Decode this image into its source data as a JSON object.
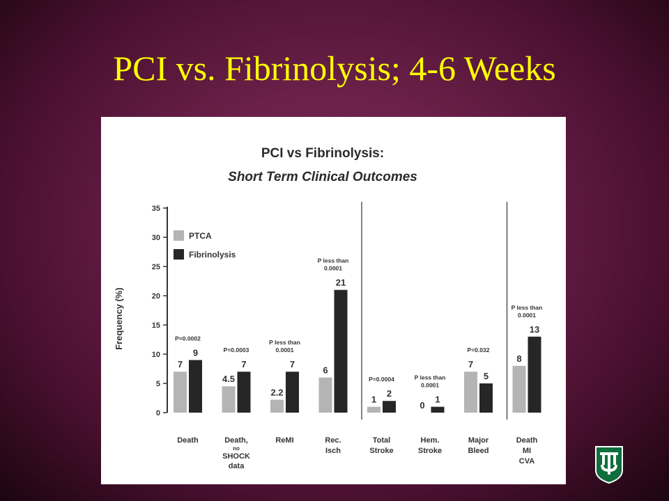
{
  "slide": {
    "title": "PCI vs. Fibrinolysis; 4-6 Weeks"
  },
  "colors": {
    "background": "#6a2048",
    "title": "#ffff00",
    "ptca": "#b4b4b4",
    "fibrinolysis": "#262626",
    "logo": "#0f6e3c"
  },
  "logo_icon": "tulane-shield-logo",
  "chart_data": {
    "type": "bar",
    "title": "PCI vs Fibrinolysis:",
    "subtitle": "Short Term Clinical Outcomes",
    "ylabel": "Frequency (%)",
    "xlabel": "",
    "ylim": [
      0,
      35
    ],
    "yticks": [
      "0",
      "5",
      "10",
      "15",
      "20",
      "25",
      "30",
      "35"
    ],
    "legend_position": "top-left",
    "grid": false,
    "categories": [
      {
        "label": [
          "Death"
        ],
        "sub": []
      },
      {
        "label": [
          "Death,"
        ],
        "sub": [
          "no",
          "SHOCK",
          "data"
        ]
      },
      {
        "label": [
          "ReMI"
        ],
        "sub": []
      },
      {
        "label": [
          "Rec.",
          "Isch"
        ],
        "sub": []
      },
      {
        "label": [
          "Total",
          "Stroke"
        ],
        "sub": []
      },
      {
        "label": [
          "Hem.",
          "Stroke"
        ],
        "sub": []
      },
      {
        "label": [
          "Major",
          "Bleed"
        ],
        "sub": []
      },
      {
        "label": [
          "Death",
          "MI",
          "CVA"
        ],
        "sub": []
      }
    ],
    "series": [
      {
        "name": "PTCA",
        "values": [
          7,
          4.5,
          2.2,
          6,
          1,
          0,
          7,
          8
        ],
        "labels": [
          "7",
          "4.5",
          "2.2",
          "6",
          "1",
          "0",
          "7",
          "8"
        ]
      },
      {
        "name": "Fibrinolysis",
        "values": [
          9,
          7,
          7,
          21,
          2,
          1,
          5,
          13
        ],
        "labels": [
          "9",
          "7",
          "7",
          "21",
          "2",
          "1",
          "5",
          "13"
        ]
      }
    ],
    "p_values": [
      [
        "P=0.0002"
      ],
      [
        "P=0.0003"
      ],
      [
        "P less than",
        "0.0001"
      ],
      [
        "P less than",
        "0.0001"
      ],
      [
        "P=0.0004"
      ],
      [
        "P less than",
        "0.0001"
      ],
      [
        "P=0.032"
      ],
      [
        "P less than",
        "0.0001"
      ]
    ],
    "separators_after_category": [
      3,
      6
    ]
  }
}
